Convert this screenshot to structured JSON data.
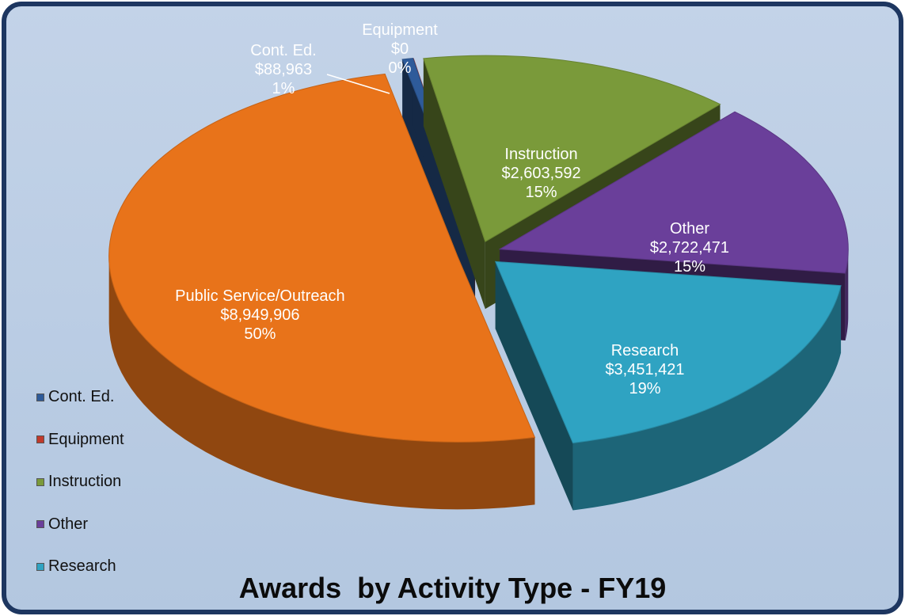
{
  "chart_data": {
    "type": "pie3d",
    "title": "Awards  by Activity Type - FY19",
    "categories": [
      "Cont. Ed.",
      "Equipment",
      "Instruction",
      "Other",
      "Research",
      "Public Service/Outreach"
    ],
    "values": [
      88963,
      0,
      2603592,
      2722471,
      3451421,
      8949906
    ],
    "value_labels": [
      "$88,963",
      "$0",
      "$2,603,592",
      "$2,722,471",
      "$3,451,421",
      "$8,949,906"
    ],
    "percent_labels": [
      "1%",
      "0%",
      "15%",
      "15%",
      "19%",
      "50%"
    ],
    "colors": [
      "#2e5b9a",
      "#c0392b",
      "#7a9a3a",
      "#6a3f9a",
      "#2fa3c2",
      "#e8731a"
    ],
    "legend": "left"
  }
}
